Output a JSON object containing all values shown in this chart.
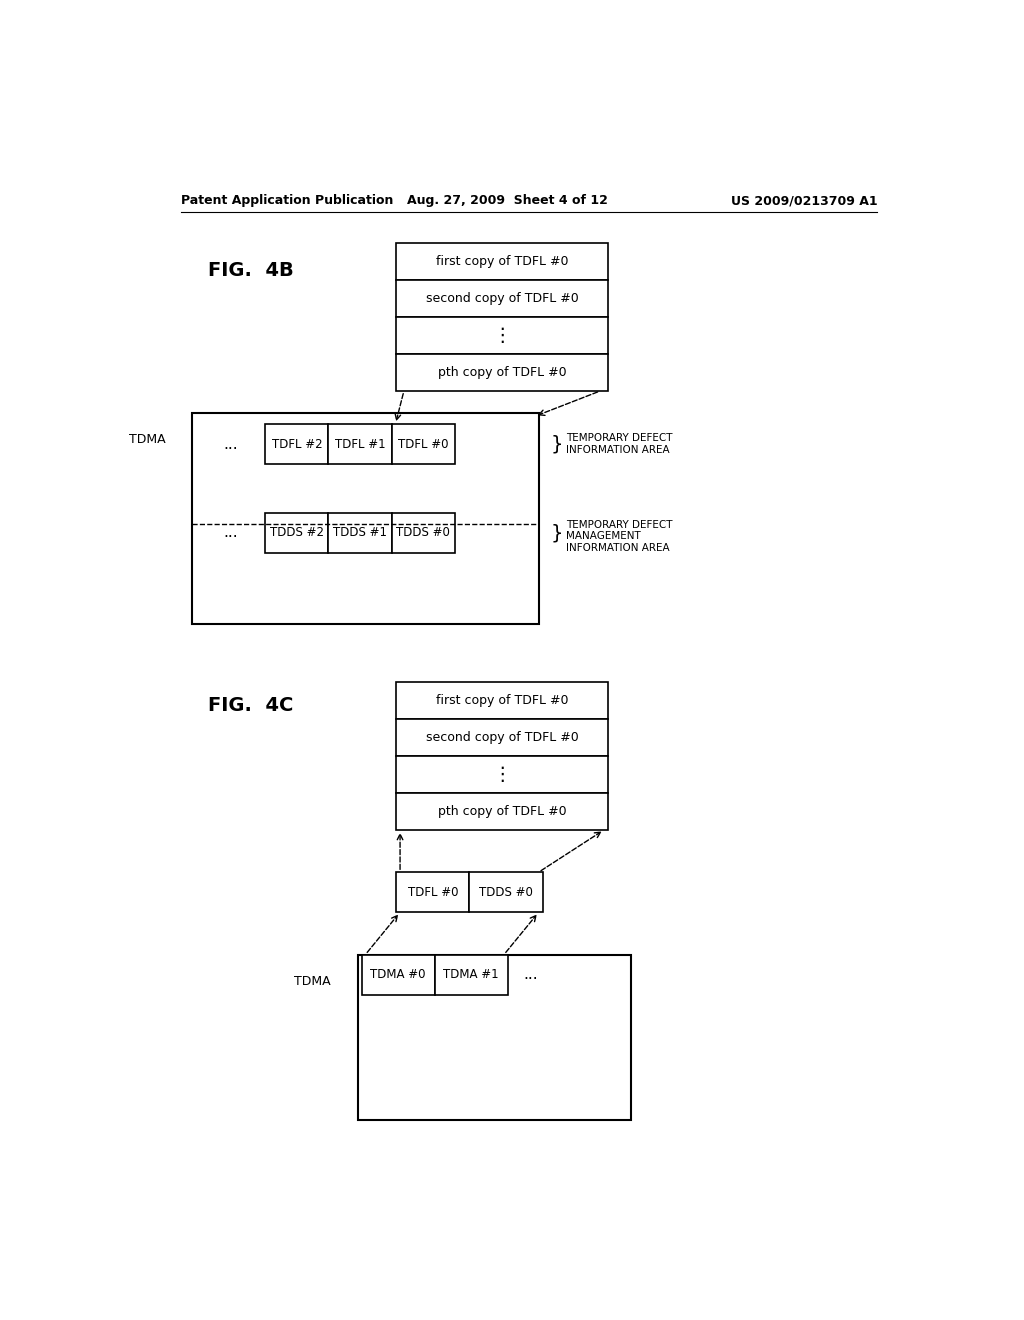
{
  "bg_color": "#ffffff",
  "header_left": "Patent Application Publication",
  "header_mid": "Aug. 27, 2009  Sheet 4 of 12",
  "header_right": "US 2009/0213709 A1",
  "fig4b_label": "FIG.  4B",
  "fig4c_label": "FIG.  4C",
  "tdfl_copies": [
    "first copy of TDFL #0",
    "second copy of TDFL #0",
    "⋮",
    "pth copy of TDFL #0"
  ],
  "label_top_area": "TEMPORARY DEFECT\nINFORMATION AREA",
  "label_bot_area": "TEMPORARY DEFECT\nMANAGEMENT\nINFORMATION AREA",
  "tdfl_row": [
    "TDFL #2",
    "TDFL #1",
    "TDFL #0"
  ],
  "tdds_row": [
    "TDDS #2",
    "TDDS #1",
    "TDDS #0"
  ],
  "mid_row": [
    "TDFL #0",
    "TDDS #0"
  ],
  "bot_row": [
    "TDMA #0",
    "TDMA #1"
  ],
  "tdma_label": "TDMA"
}
